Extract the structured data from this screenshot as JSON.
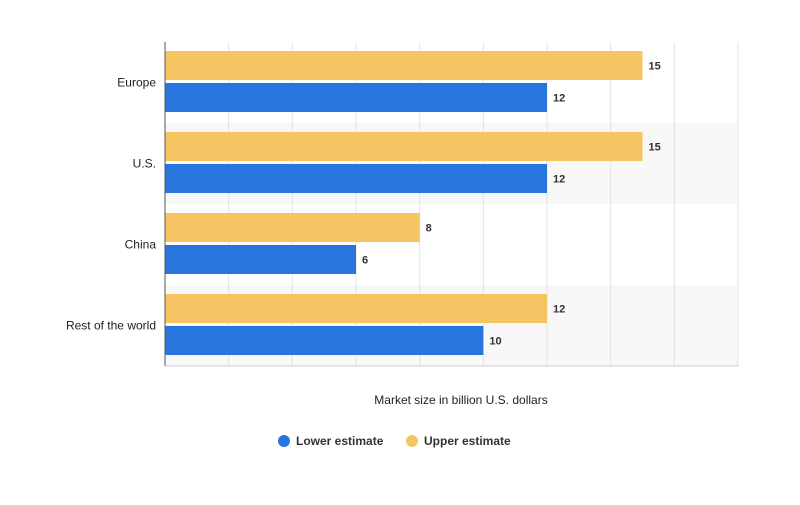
{
  "chart_data": {
    "type": "bar",
    "orientation": "horizontal",
    "categories": [
      "Europe",
      "U.S.",
      "China",
      "Rest of the world"
    ],
    "series": [
      {
        "name": "Upper estimate",
        "color": "#f5c564",
        "values": [
          15,
          15,
          8,
          12
        ]
      },
      {
        "name": "Lower estimate",
        "color": "#2876dd",
        "values": [
          12,
          12,
          6,
          10
        ]
      }
    ],
    "xlabel": "Market size in billion U.S. dollars",
    "ylabel": "",
    "xlim": [
      0,
      18
    ],
    "grid": true,
    "legend": {
      "placement": "bottom-center",
      "order": [
        "Lower estimate",
        "Upper estimate"
      ]
    }
  }
}
